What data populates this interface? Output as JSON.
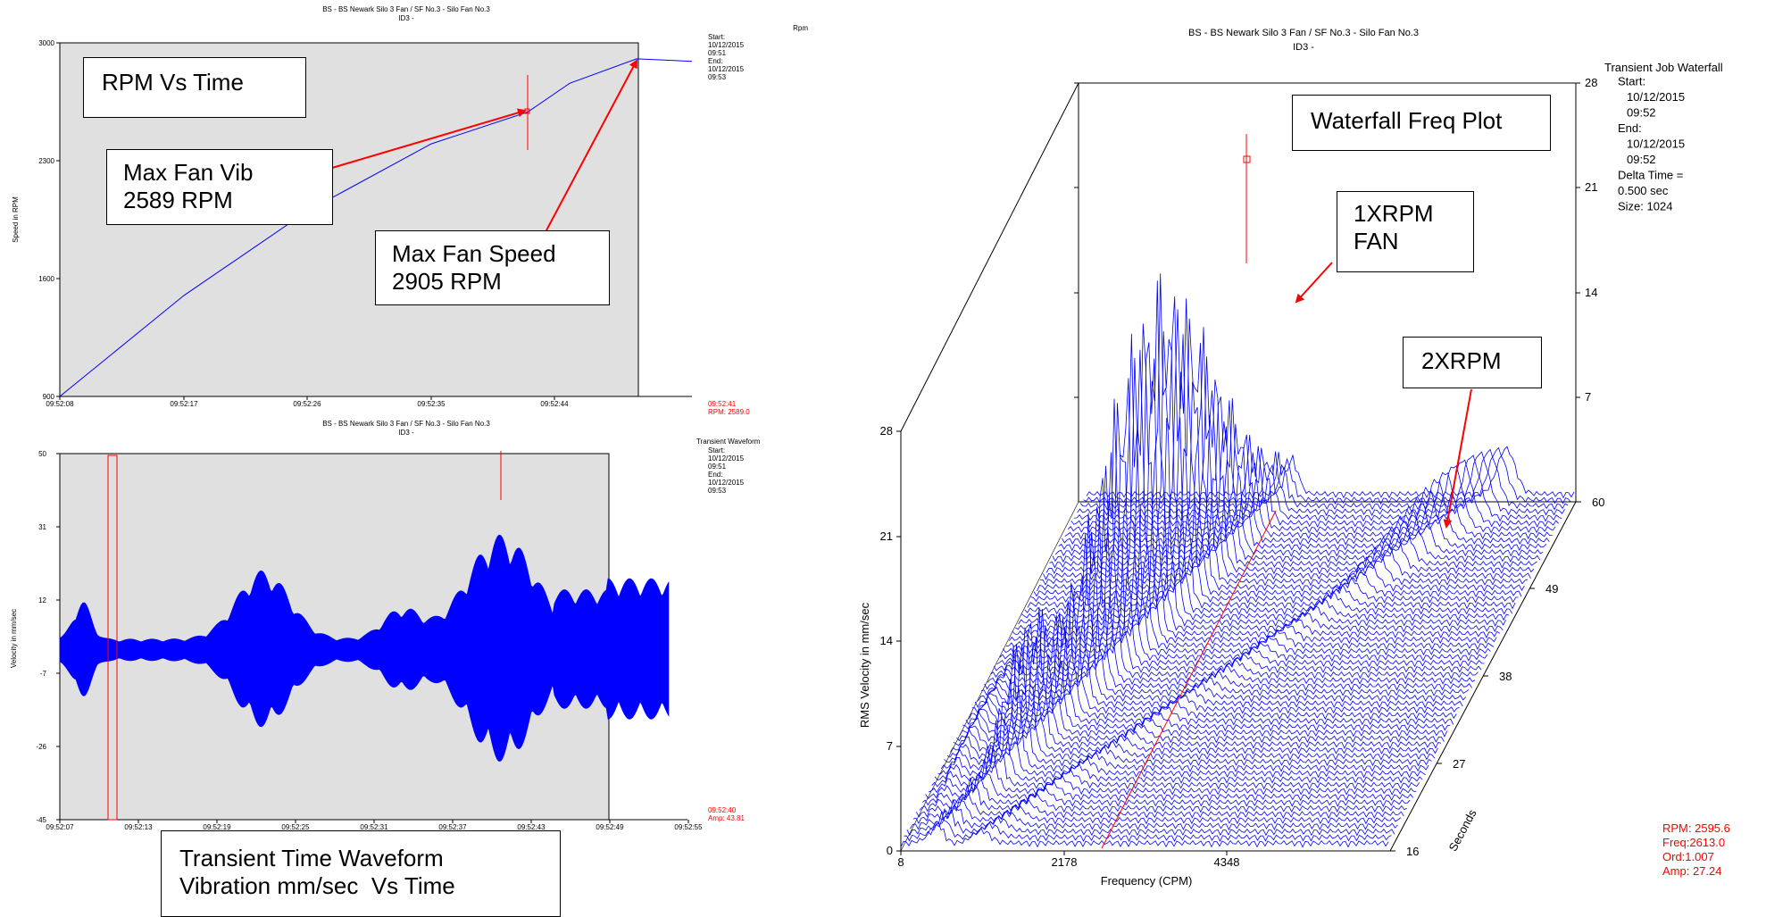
{
  "colors": {
    "trace": "#0000ff",
    "cursor": "#ff0000",
    "panel_bg": "#e0e0e0"
  },
  "rpm_chart": {
    "title": "BS - BS Newark Silo 3 Fan / SF No.3 - Silo Fan No.3",
    "subtitle": "ID3 -",
    "unit": "Rpm",
    "ylabel": "Speed in RPM",
    "y_ticks": [
      "3000",
      "2300",
      "1600",
      "900"
    ],
    "x_ticks": [
      "09:52:08",
      "09:52:17",
      "09:52:26",
      "09:52:35",
      "09:52:44"
    ],
    "info": [
      "Start:",
      "10/12/2015",
      "09:51",
      "End:",
      "10/12/2015",
      "09:53"
    ],
    "cursor": [
      "09:52:41",
      "RPM: 2589.0"
    ]
  },
  "wave_chart": {
    "title": "BS - BS Newark Silo 3 Fan / SF No.3 - Silo Fan No.3",
    "subtitle": "ID3 -",
    "unit": "Transient Waveform",
    "ylabel": "Velocity in mm/sec",
    "y_ticks": [
      "50",
      "31",
      "12",
      "-7",
      "-26",
      "-45"
    ],
    "x_ticks": [
      "09:52:07",
      "09:52:13",
      "09:52:19",
      "09:52:25",
      "09:52:31",
      "09:52:37",
      "09:52:43",
      "09:52:49",
      "09:52:55"
    ],
    "info": [
      "Start:",
      "10/12/2015",
      "09:51",
      "End:",
      "10/12/2015",
      "09:53"
    ],
    "cursor": [
      "09:52:40",
      "Amp: 43.81"
    ]
  },
  "waterfall": {
    "title": "BS - BS Newark Silo 3 Fan / SF No.3 - Silo Fan No.3",
    "subtitle": "ID3 -",
    "ylabel": "RMS Velocity in mm/sec",
    "xlabel": "Frequency (CPM)",
    "zlabel": "Seconds",
    "y_ticks": [
      "0",
      "7",
      "14",
      "21",
      "28"
    ],
    "x_ticks": [
      "8",
      "2178",
      "4348"
    ],
    "z_ticks": [
      "16",
      "27",
      "38",
      "49",
      "60"
    ],
    "back_ticks": [
      "28",
      "21",
      "14",
      "7"
    ],
    "info": [
      "Transient Job Waterfall",
      "Start:",
      "10/12/2015",
      "09:52",
      "End:",
      "10/12/2015",
      "09:52",
      "Delta Time =",
      "0.500 sec",
      "Size: 1024"
    ],
    "cursor": [
      "RPM: 2595.6",
      "Freq:2613.0",
      "Ord:1.007",
      "Amp: 27.24"
    ]
  },
  "annotations": {
    "rpm_vs_time": "RPM Vs Time",
    "max_vib_1": "Max Fan Vib",
    "max_vib_2": "2589 RPM",
    "max_speed_1": "Max Fan Speed",
    "max_speed_2": "2905 RPM",
    "waterfall_title": "Waterfall Freq Plot",
    "x1_1": "1XRPM",
    "x1_2": "FAN",
    "x2": "2XRPM",
    "ttw_1": "Transient Time Waveform",
    "ttw_2": "Vibration mm/sec  Vs Time"
  },
  "chart_data": [
    {
      "type": "line",
      "title": "BS - BS Newark Silo 3 Fan / SF No.3 - Silo Fan No.3",
      "ylabel": "Speed in RPM",
      "x": [
        "09:52:08",
        "09:52:17",
        "09:52:26",
        "09:52:35",
        "09:52:41",
        "09:52:44",
        "09:52:47",
        "09:52:52"
      ],
      "series": [
        {
          "values": [
            900,
            1500,
            2000,
            2400,
            2589,
            2760,
            2905,
            2890
          ]
        }
      ],
      "ylim": [
        900,
        3000
      ]
    },
    {
      "type": "area",
      "title": "BS - BS Newark Silo 3 Fan / SF No.3 - Silo Fan No.3",
      "ylabel": "Velocity in mm/sec",
      "x": [
        "09:52:07",
        "09:52:13",
        "09:52:19",
        "09:52:25",
        "09:52:31",
        "09:52:37",
        "09:52:43",
        "09:52:49"
      ],
      "series": [
        {
          "values": [
            5,
            6,
            10,
            25,
            12,
            22,
            44,
            18
          ]
        }
      ],
      "ylim": [
        -45,
        50
      ]
    },
    {
      "type": "line",
      "title": "BS - BS Newark Silo 3 Fan / SF No.3 - Silo Fan No.3",
      "xlabel": "Frequency (CPM)",
      "ylabel": "RMS Velocity in mm/sec",
      "x": [
        8,
        2178,
        2613,
        4348,
        6500
      ],
      "series": [
        {
          "values": [
            0,
            8,
            27.24,
            6,
            3
          ]
        }
      ],
      "ylim": [
        0,
        28
      ]
    }
  ]
}
